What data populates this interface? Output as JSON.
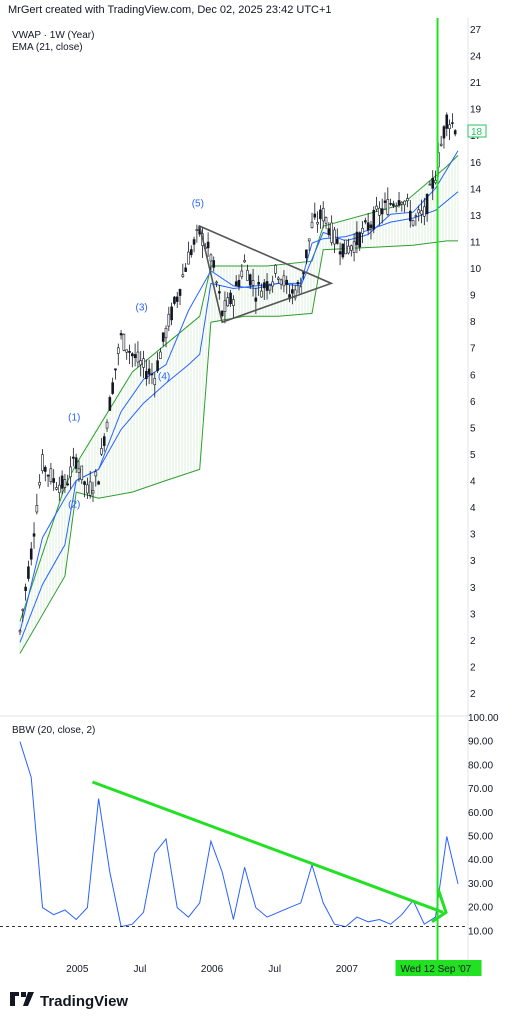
{
  "header": {
    "attribution": "MrGert created with TradingView.com, Dec 02, 2025 23:42 UTC+1",
    "indicator1": "VWAP · 1W (Year)",
    "indicator2": "EMA (21, close)",
    "oscillator": "BBW (20, close, 2)"
  },
  "footer": {
    "brand": "TradingView",
    "brand_icon": "tradingview-logo-icon"
  },
  "colors": {
    "candle": "#131722",
    "vwap": "#2962ff",
    "vwap_band": "#2e9e2e",
    "ema": "#2962ff",
    "bbw": "#2962ff",
    "trend": "#22e022",
    "vertical": "#22e022",
    "triangle": "#555555",
    "price_box": "#22c55e"
  },
  "chart_data": [
    {
      "type": "line",
      "title": "",
      "price_labels": [
        "27",
        "24",
        "21",
        "19",
        "17",
        "16",
        "14",
        "13",
        "11",
        "10",
        "9",
        "8",
        "7",
        "6",
        "6",
        "5",
        "5",
        "4",
        "4",
        "3",
        "3",
        "3",
        "3",
        "2",
        "2",
        "2"
      ],
      "last_price_label": "18",
      "x_tick_labels": [
        "2005",
        "Jul",
        "2006",
        "Jul",
        "2007"
      ],
      "vertical_marker_label": "Wed 12 Sep '07",
      "ylim": [
        1.9,
        27
      ],
      "scale": "log",
      "wave_labels": [
        "(1)",
        "(2)",
        "(3)",
        "(4)",
        "(5)"
      ],
      "series": [
        {
          "name": "Price",
          "x": [
            "2004-08",
            "2004-09",
            "2004-10",
            "2004-11",
            "2004-12",
            "2005-01",
            "2005-02",
            "2005-03",
            "2005-04",
            "2005-05",
            "2005-06",
            "2005-07",
            "2005-08",
            "2005-09",
            "2005-10",
            "2005-11",
            "2005-12",
            "2006-01",
            "2006-02",
            "2006-03",
            "2006-04",
            "2006-05",
            "2006-06",
            "2006-07",
            "2006-08",
            "2006-09",
            "2006-10",
            "2006-11",
            "2006-12",
            "2007-01",
            "2007-02",
            "2007-03",
            "2007-04",
            "2007-05",
            "2007-06",
            "2007-07",
            "2007-08",
            "2007-09",
            "2007-10",
            "2007-11"
          ],
          "values": [
            2.4,
            3.3,
            4.7,
            4.4,
            4.3,
            4.8,
            4.2,
            4.5,
            6.0,
            7.8,
            7.3,
            6.9,
            6.7,
            8.0,
            9.2,
            10.8,
            11.9,
            10.8,
            8.6,
            9.2,
            10.5,
            9.4,
            9.7,
            10.2,
            9.3,
            9.6,
            12.2,
            12.8,
            11.6,
            11.1,
            11.5,
            12.2,
            12.9,
            13.4,
            13.8,
            12.5,
            12.8,
            15.0,
            18.8,
            18.0
          ]
        },
        {
          "name": "VWAP",
          "x": [
            "2004-08",
            "2004-10",
            "2004-12",
            "2005-01",
            "2005-03",
            "2005-05",
            "2005-07",
            "2005-09",
            "2005-11",
            "2005-12",
            "2006-01",
            "2006-03",
            "2006-05",
            "2006-07",
            "2006-09",
            "2006-10",
            "2006-11",
            "2007-01",
            "2007-03",
            "2007-05",
            "2007-07",
            "2007-09",
            "2007-11"
          ],
          "values": [
            2.3,
            2.9,
            3.4,
            4.4,
            4.6,
            5.4,
            6.0,
            6.5,
            7.0,
            7.3,
            9.7,
            9.5,
            9.6,
            9.7,
            9.7,
            11.4,
            11.6,
            11.7,
            12.0,
            12.4,
            12.6,
            13.0,
            14.0
          ]
        },
        {
          "name": "EMA",
          "x": [
            "2004-08",
            "2004-10",
            "2004-12",
            "2005-01",
            "2005-03",
            "2005-05",
            "2005-07",
            "2005-09",
            "2005-11",
            "2006-01",
            "2006-03",
            "2006-05",
            "2006-07",
            "2006-09",
            "2006-11",
            "2007-01",
            "2007-03",
            "2007-05",
            "2007-07",
            "2007-09",
            "2007-11"
          ],
          "values": [
            2.4,
            3.5,
            4.1,
            4.4,
            4.6,
            5.8,
            6.6,
            7.0,
            8.7,
            10.2,
            9.6,
            9.5,
            9.7,
            9.6,
            11.9,
            11.5,
            11.8,
            12.8,
            12.9,
            14.2,
            16.5
          ]
        },
        {
          "name": "VWAP lower band",
          "x": [
            "2004-08",
            "2004-12",
            "2005-01",
            "2005-03",
            "2005-06",
            "2005-09",
            "2005-12",
            "2006-01",
            "2006-04",
            "2006-07",
            "2006-10",
            "2006-11",
            "2007-03",
            "2007-07",
            "2007-10",
            "2007-11"
          ],
          "values": [
            2.2,
            3.0,
            4.2,
            4.1,
            4.2,
            4.4,
            4.6,
            8.3,
            8.5,
            8.5,
            8.6,
            11.1,
            11.2,
            11.3,
            11.5,
            11.5
          ]
        },
        {
          "name": "VWAP upper band",
          "x": [
            "2004-08",
            "2004-12",
            "2005-01",
            "2005-06",
            "2005-12",
            "2006-01",
            "2006-06",
            "2006-10",
            "2006-11",
            "2007-06",
            "2007-10",
            "2007-11"
          ],
          "values": [
            2.5,
            4.3,
            4.7,
            6.8,
            8.5,
            10.4,
            10.4,
            10.6,
            12.2,
            13.3,
            15.5,
            16.2
          ]
        }
      ]
    },
    {
      "type": "line",
      "title": "BBW (20, close, 2)",
      "y_tick_labels": [
        "100.00",
        "90.00",
        "80.00",
        "70.00",
        "60.00",
        "50.00",
        "40.00",
        "30.00",
        "20.00",
        "10.00"
      ],
      "ylim": [
        0,
        100
      ],
      "reference_line": 12,
      "series": [
        {
          "name": "BBW",
          "x": [
            "2004-08",
            "2004-09",
            "2004-10",
            "2004-11",
            "2004-12",
            "2005-01",
            "2005-02",
            "2005-03",
            "2005-04",
            "2005-05",
            "2005-06",
            "2005-07",
            "2005-08",
            "2005-09",
            "2005-10",
            "2005-11",
            "2005-12",
            "2006-01",
            "2006-02",
            "2006-03",
            "2006-04",
            "2006-05",
            "2006-06",
            "2006-07",
            "2006-08",
            "2006-09",
            "2006-10",
            "2006-11",
            "2006-12",
            "2007-01",
            "2007-02",
            "2007-03",
            "2007-04",
            "2007-05",
            "2007-06",
            "2007-07",
            "2007-08",
            "2007-09",
            "2007-10",
            "2007-11"
          ],
          "values": [
            90,
            75,
            20,
            17,
            19,
            15,
            20,
            66,
            35,
            12,
            13,
            18,
            43,
            49,
            20,
            16,
            22,
            48,
            35,
            15,
            37,
            20,
            16,
            18,
            20,
            22,
            38,
            22,
            13,
            12,
            16,
            14,
            15,
            13,
            17,
            23,
            13,
            16,
            50,
            30
          ]
        }
      ]
    }
  ]
}
